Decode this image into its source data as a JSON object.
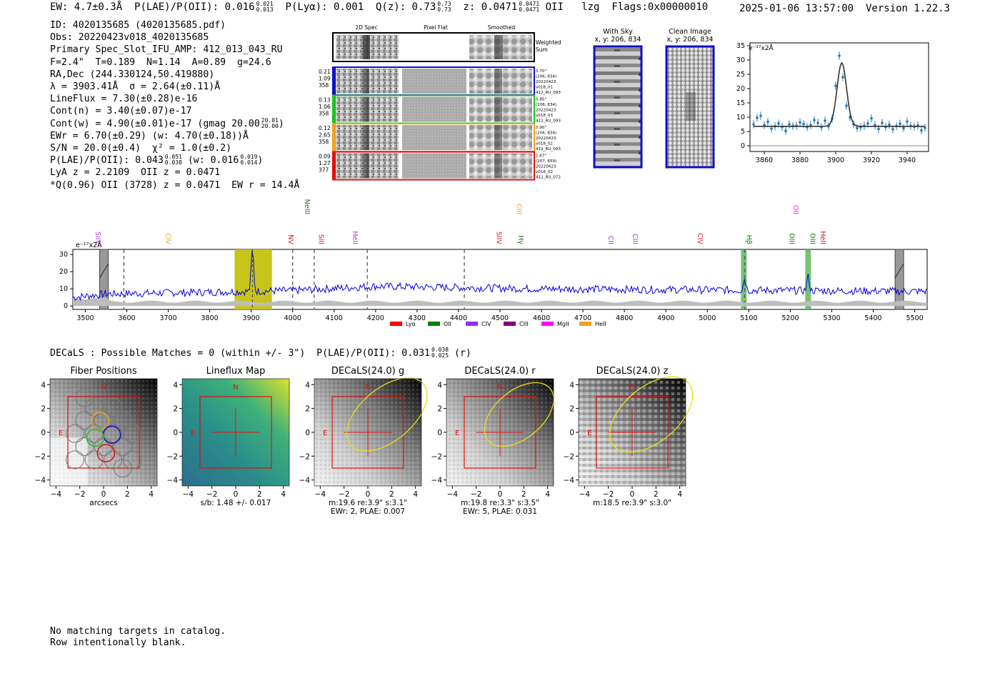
{
  "header": {
    "ew": "EW: 4.7±0.3Å",
    "plae_prefix": "P(LAE)/P(OII): 0.016",
    "plae_sup": "0.021",
    "plae_sub": "0.013",
    "plya": "P(Lyα): 0.001",
    "qz_prefix": "Q(z): 0.73",
    "qz_sup": "0.73",
    "qz_sub": "0.73",
    "z_prefix": "z: 0.0471",
    "z_sup": "0.0471",
    "z_sub": "0.0471",
    "z_line": "OII",
    "lzg": "lzg",
    "flags": "Flags:0x00000010",
    "datetime": "2025-01-06 13:57:00",
    "version": "Version 1.22.3"
  },
  "info": {
    "id": "ID: 4020135685 (4020135685.pdf)",
    "obs": "Obs: 20220423v018_4020135685",
    "primary": "Primary Spec_Slot_IFU_AMP: 412_013_043_RU",
    "fiber": "F=2.4\"  T=0.189  N=1.14  A=0.89  g=24.6",
    "radec": "RA,Dec (244.330124,50.419880)",
    "lambda": "λ = 3903.41Å  σ = 2.64(±0.11)Å",
    "lineflux": "LineFlux = 7.30(±0.28)e-16",
    "contn": "Cont(n) = 3.40(±0.07)e-17",
    "contw_prefix": "Cont(w) = 4.90(±0.01)e-17 (gmag 20.00",
    "contw_sup": "20.01",
    "contw_sub": "20.00",
    "contw_suffix": ")",
    "ewr": "EWr = 6.70(±0.29) (w: 4.70(±0.18))Å",
    "sn": "S/N = 20.0(±0.4)  χ² = 1.0(±0.2)",
    "plae_prefix": "P(LAE)/P(OII): 0.043",
    "plae_sup": "0.051",
    "plae_sub": "0.038",
    "plae_mid": "(w: 0.016",
    "plae_w_sup": "0.019",
    "plae_w_sub": "0.014",
    "plae_suffix": ")",
    "lya": "LyA z = 2.2109  OII z = 0.0471",
    "q": "*Q(0.96) OII (3728) z = 0.0471  EW r = 14.4Å"
  },
  "cutouts": {
    "headers": [
      "2D Spec",
      "Pixel Flat",
      "Smoothed"
    ],
    "weighted_label": [
      "Weighted",
      "Sum"
    ],
    "rows": [
      {
        "left": [
          "0.21",
          "1.09",
          "358"
        ],
        "right": [
          "0.70\"",
          "(206, 834)",
          "20220423",
          "v018_01",
          "412_RU_093"
        ],
        "color": "#1010c8"
      },
      {
        "left": [
          "0.13",
          "1.06",
          "358"
        ],
        "right": [
          "0.85\"",
          "(206, 834)",
          "20220423",
          "v018_03",
          "412_RU_093"
        ],
        "color": "#20c020"
      },
      {
        "left": [
          "0.12",
          "2.65",
          "358"
        ],
        "right": [
          "0.90\"",
          "(206, 834)",
          "20220423",
          "v018_02",
          "412_RU_093"
        ],
        "color": "#f0a020"
      },
      {
        "left": [
          "0.09",
          "1.27",
          "377"
        ],
        "right": [
          "1.67\"",
          "(207, 659)",
          "20220423",
          "v018_02",
          "412_RU_072"
        ],
        "color": "#e01010"
      }
    ]
  },
  "sky": {
    "with_sky_title": "With Sky",
    "with_sky_coords": "x, y: 206, 834",
    "clean_title": "Clean Image",
    "clean_coords": "x, y: 206, 834"
  },
  "chart_data": [
    {
      "type": "scatter",
      "name": "line-fit",
      "ylabel": "e⁻¹⁷x2Å",
      "x_ticks": [
        3860,
        3880,
        3900,
        3920,
        3940
      ],
      "y_ticks": [
        0,
        5,
        10,
        15,
        20,
        25,
        30,
        35
      ],
      "xlim": [
        3852,
        3952
      ],
      "ylim": [
        -2,
        36
      ],
      "continuum": 6.8,
      "fit": {
        "center": 3903.4,
        "sigma": 2.64,
        "amp": 22.2
      },
      "x": [
        3854,
        3856,
        3858,
        3860,
        3862,
        3864,
        3866,
        3868,
        3870,
        3872,
        3874,
        3876,
        3878,
        3880,
        3882,
        3884,
        3886,
        3888,
        3890,
        3892,
        3894,
        3896,
        3898,
        3900,
        3902,
        3904,
        3906,
        3908,
        3910,
        3912,
        3914,
        3916,
        3918,
        3920,
        3922,
        3924,
        3926,
        3928,
        3930,
        3932,
        3934,
        3936,
        3938,
        3940,
        3942,
        3944,
        3946,
        3948,
        3950
      ],
      "y": [
        7.5,
        9.8,
        10.5,
        7.2,
        8.4,
        6.0,
        6.8,
        7.8,
        6.6,
        5.2,
        7.5,
        6.9,
        7.0,
        8.2,
        7.6,
        6.5,
        7.2,
        9.0,
        8.0,
        6.5,
        8.8,
        6.8,
        9.5,
        21,
        31.5,
        24,
        14,
        10,
        7.5,
        6.2,
        6.5,
        7.0,
        7.8,
        9.6,
        7.2,
        5.9,
        8.0,
        6.6,
        7.4,
        5.8,
        6.9,
        7.7,
        6.2,
        8.5,
        7.0,
        6.7,
        7.1,
        5.4,
        6.3
      ]
    },
    {
      "type": "line",
      "name": "full-spectrum",
      "ylabel": "e⁻¹⁷x2Å",
      "x_ticks": [
        3500,
        3600,
        3700,
        3800,
        3900,
        4000,
        4100,
        4200,
        4300,
        4400,
        4500,
        4600,
        4700,
        4800,
        4900,
        5000,
        5100,
        5200,
        5300,
        5400,
        5500
      ],
      "y_ticks": [
        0,
        10,
        20,
        30
      ],
      "xlim": [
        3470,
        5530
      ],
      "ylim": [
        -2,
        33
      ],
      "highlight_band": [
        3860,
        3950
      ],
      "peak": {
        "x": 3903,
        "y": 31
      },
      "dashed_lines": [
        3593,
        4000,
        4052,
        4180,
        4414,
        5090
      ],
      "green_bands": [
        5088,
        5243
      ],
      "gray_bars": [
        3545,
        5463
      ],
      "lines_top": [
        {
          "label": "SiIV",
          "x": 3520,
          "color": "#a040e0"
        },
        {
          "label": "CIV",
          "x": 3690,
          "color": "#f0a020"
        },
        {
          "label": "NV",
          "x": 3985,
          "color": "#e01010"
        },
        {
          "label": "NeIII",
          "x": 4025,
          "color": "#108010"
        },
        {
          "label": "SiII",
          "x": 4058,
          "color": "#e01010"
        },
        {
          "label": "HeII",
          "x": 4140,
          "color": "#a040e0"
        },
        {
          "label": "SiIV",
          "x": 4487,
          "color": "#e01010"
        },
        {
          "label": "CIII",
          "x": 4535,
          "color": "#f0a020"
        },
        {
          "label": "Hγ",
          "x": 4540,
          "color": "#108010"
        },
        {
          "label": "CII",
          "x": 4757,
          "color": "#a040e0"
        },
        {
          "label": "CIII",
          "x": 4815,
          "color": "#a040e0"
        },
        {
          "label": "CIV",
          "x": 4972,
          "color": "#e01010"
        },
        {
          "label": "Hβ",
          "x": 5090,
          "color": "#108010"
        },
        {
          "label": "OII",
          "x": 5203,
          "color": "#ff20ff"
        },
        {
          "label": "OIII",
          "x": 5193,
          "color": "#108010"
        },
        {
          "label": "OIII",
          "x": 5243,
          "color": "#108010"
        },
        {
          "label": "HeII",
          "x": 5268,
          "color": "#e01010"
        }
      ],
      "legend": [
        {
          "label": "Lyα",
          "color": "#ff0000"
        },
        {
          "label": "OII",
          "color": "#008000"
        },
        {
          "label": "CIV",
          "color": "#9030f0"
        },
        {
          "label": "CIII",
          "color": "#800080"
        },
        {
          "label": "MgII",
          "color": "#ff00ff"
        },
        {
          "label": "HeII",
          "color": "#f0a020"
        }
      ]
    }
  ],
  "decals": {
    "line_prefix": "DECaLS : Possible Matches = 0 (within +/- 3\")  P(LAE)/P(OII): 0.031",
    "line_sup": "0.038",
    "line_sub": "0.025",
    "line_suffix": "(r)",
    "panels": [
      {
        "title": "Fiber Positions",
        "caption1": "arcsecs",
        "caption2": ""
      },
      {
        "title": "Lineflux Map",
        "caption1": "s/b: 1.48 +/- 0.017",
        "caption2": ""
      },
      {
        "title": "DECaLS(24.0) g",
        "caption1": "m:19.6  re:3.9\"  s:3.1\"",
        "caption2": "EWr: 2, PLAE: 0.007"
      },
      {
        "title": "DECaLS(24.0) r",
        "caption1": "m:19.8  re:3.3\"  s:3.5\"",
        "caption2": "EWr: 5, PLAE: 0.031"
      },
      {
        "title": "DECaLS(24.0) z",
        "caption1": "m:18.5  re:3.9\"  s:3.0\"",
        "caption2": ""
      }
    ],
    "ticks": [
      "−4",
      "−2",
      "0",
      "2",
      "4"
    ],
    "north": "N",
    "east": "E"
  },
  "footer": {
    "line1": "No matching targets in catalog.",
    "line2": "Row intentionally blank."
  }
}
